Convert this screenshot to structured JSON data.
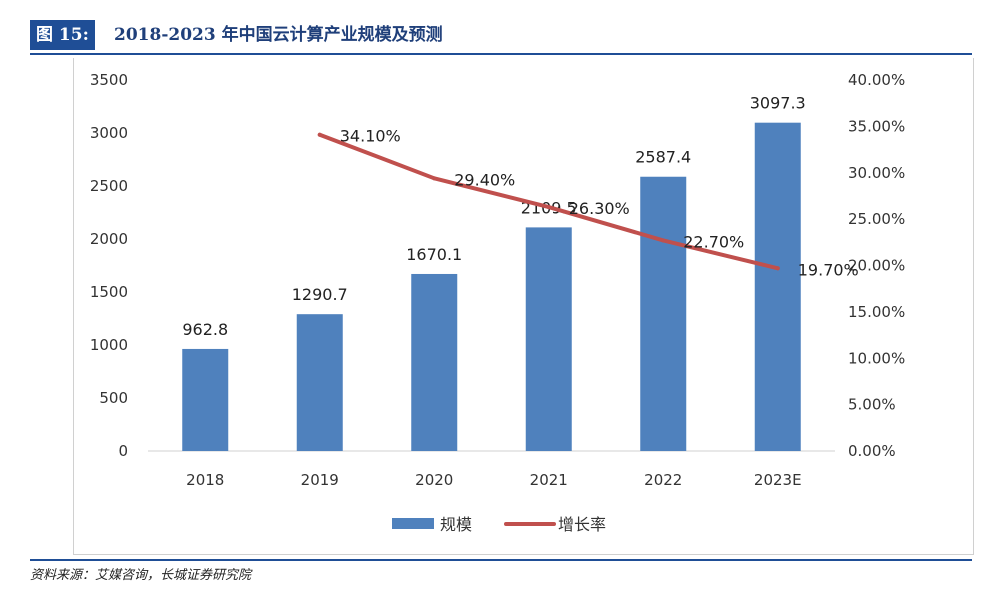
{
  "figure": {
    "label": "图 15:",
    "title": "2018-2023 年中国云计算产业规模及预测"
  },
  "source": "资料来源：艾媒咨询，长城证券研究院",
  "colors": {
    "bar": "#4f81bd",
    "line": "#c0504d",
    "accent": "#1f4e96"
  },
  "chart_data": {
    "type": "bar",
    "categories": [
      "2018",
      "2019",
      "2020",
      "2021",
      "2022",
      "2023E"
    ],
    "series": [
      {
        "name": "规模",
        "type": "bar",
        "axis": "left",
        "values": [
          962.8,
          1290.7,
          1670.1,
          2109.5,
          2587.4,
          3097.3
        ],
        "labels": [
          "962.8",
          "1290.7",
          "1670.1",
          "2109.5",
          "2587.4",
          "3097.3"
        ]
      },
      {
        "name": "增长率",
        "type": "line",
        "axis": "right",
        "values": [
          null,
          34.1,
          29.4,
          26.3,
          22.7,
          19.7
        ],
        "labels": [
          "",
          "34.10%",
          "29.40%",
          "26.30%",
          "22.70%",
          "19.70%"
        ]
      }
    ],
    "ylim": [
      0,
      3500
    ],
    "yticks": [
      "0",
      "500",
      "1000",
      "1500",
      "2000",
      "2500",
      "3000",
      "3500"
    ],
    "y2lim": [
      0,
      40
    ],
    "y2ticks": [
      "0.00%",
      "5.00%",
      "10.00%",
      "15.00%",
      "20.00%",
      "25.00%",
      "30.00%",
      "35.00%",
      "40.00%"
    ],
    "grid": false,
    "legend": "bottom"
  }
}
